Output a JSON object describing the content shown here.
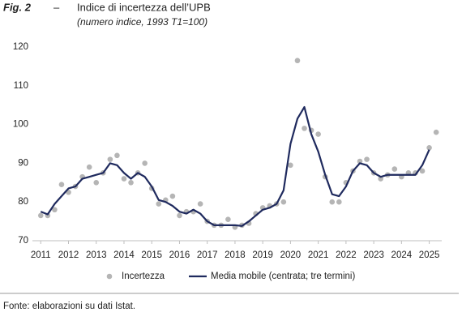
{
  "chart_data": {
    "type": "line",
    "fig_label": "Fig. 2",
    "label_separator": "–",
    "title": "Indice di incertezza dell’UPB",
    "subtitle": "(numero indice, 1993 T1=100)",
    "source": "Fonte: elaborazioni su dati Istat.",
    "x": [
      2011,
      2011.25,
      2011.5,
      2011.75,
      2012,
      2012.25,
      2012.5,
      2012.75,
      2013,
      2013.25,
      2013.5,
      2013.75,
      2014,
      2014.25,
      2014.5,
      2014.75,
      2015,
      2015.25,
      2015.5,
      2015.75,
      2016,
      2016.25,
      2016.5,
      2016.75,
      2017,
      2017.25,
      2017.5,
      2017.75,
      2018,
      2018.25,
      2018.5,
      2018.75,
      2019,
      2019.25,
      2019.5,
      2019.75,
      2020,
      2020.25,
      2020.5,
      2020.75,
      2021,
      2021.25,
      2021.5,
      2021.75,
      2022,
      2022.25,
      2022.5,
      2022.75,
      2023,
      2023.25,
      2023.5,
      2023.75,
      2024,
      2024.25,
      2024.5,
      2024.75,
      2025,
      2025.25
    ],
    "series": [
      {
        "name": "Incertezza",
        "type": "scatter",
        "color": "#b5b5b5",
        "values": [
          76.5,
          76.5,
          78,
          84.5,
          82.5,
          84,
          86.5,
          89,
          85,
          87.5,
          91,
          92,
          86,
          85,
          87.5,
          90,
          83.5,
          79.5,
          80.5,
          81.5,
          76.5,
          77.5,
          77.5,
          79.5,
          75,
          74,
          74,
          75.5,
          73.5,
          74,
          74.5,
          77,
          78.5,
          79,
          79.5,
          80,
          89.5,
          116.5,
          99,
          98.5,
          97.5,
          86.5,
          80,
          80,
          85,
          88,
          90.5,
          91,
          87.5,
          86,
          87,
          88.5,
          86.5,
          87.5,
          87.5,
          88,
          94,
          98
        ]
      },
      {
        "name": "Media mobile (centrata; tre termini)",
        "type": "line",
        "color": "#1f2a5e",
        "values": [
          77.5,
          76.8,
          79.5,
          81.5,
          83.5,
          84,
          86,
          86.5,
          87,
          87.5,
          90,
          89.5,
          87.5,
          86,
          87.5,
          86.5,
          84,
          80.5,
          80,
          79,
          77.5,
          77,
          78,
          77,
          75,
          74,
          74,
          74,
          74,
          73.8,
          75,
          76.5,
          78,
          78.5,
          79.5,
          83,
          95,
          101.5,
          104.5,
          97.5,
          93,
          87,
          82,
          81.5,
          84,
          88,
          90,
          89.5,
          87.5,
          86.5,
          87,
          87,
          87,
          87,
          87,
          89.5,
          93.5,
          null
        ]
      }
    ],
    "xlim": [
      2010.7,
      2025.45
    ],
    "xticks": [
      2011,
      2012,
      2013,
      2014,
      2015,
      2016,
      2017,
      2018,
      2019,
      2020,
      2021,
      2022,
      2023,
      2024,
      2025
    ],
    "ylim": [
      70,
      120
    ],
    "yticks": [
      70,
      80,
      90,
      100,
      110,
      120
    ],
    "grid": false,
    "axis_color": "#bfbfbf"
  }
}
